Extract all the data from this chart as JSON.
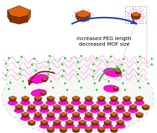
{
  "title_line1": "increased PEG length",
  "title_line2": "decreased MOF size",
  "title_fontsize": 5.2,
  "bg_color": "#ffffff",
  "ellipse_fc": "#f0f0f0",
  "ellipse_ec": "#bbbbbb",
  "green_dot_color": "#00dd00",
  "peg_chain_color": "#ff99cc",
  "mof_top": "#e06010",
  "mof_left": "#8b3300",
  "mof_right": "#c05010",
  "mof_bottom_face": "#b04800",
  "magenta": "#ff00cc",
  "magenta_edge": "#cc00aa",
  "arrow_blue": "#1144cc",
  "arrow_green": "#33aa33",
  "arrow_brown": "#882222",
  "dashed_box_ec": "#999999",
  "mof_small_top": "#d86010",
  "mof_small_left": "#7a3300",
  "mof_small_right": "#b84800"
}
